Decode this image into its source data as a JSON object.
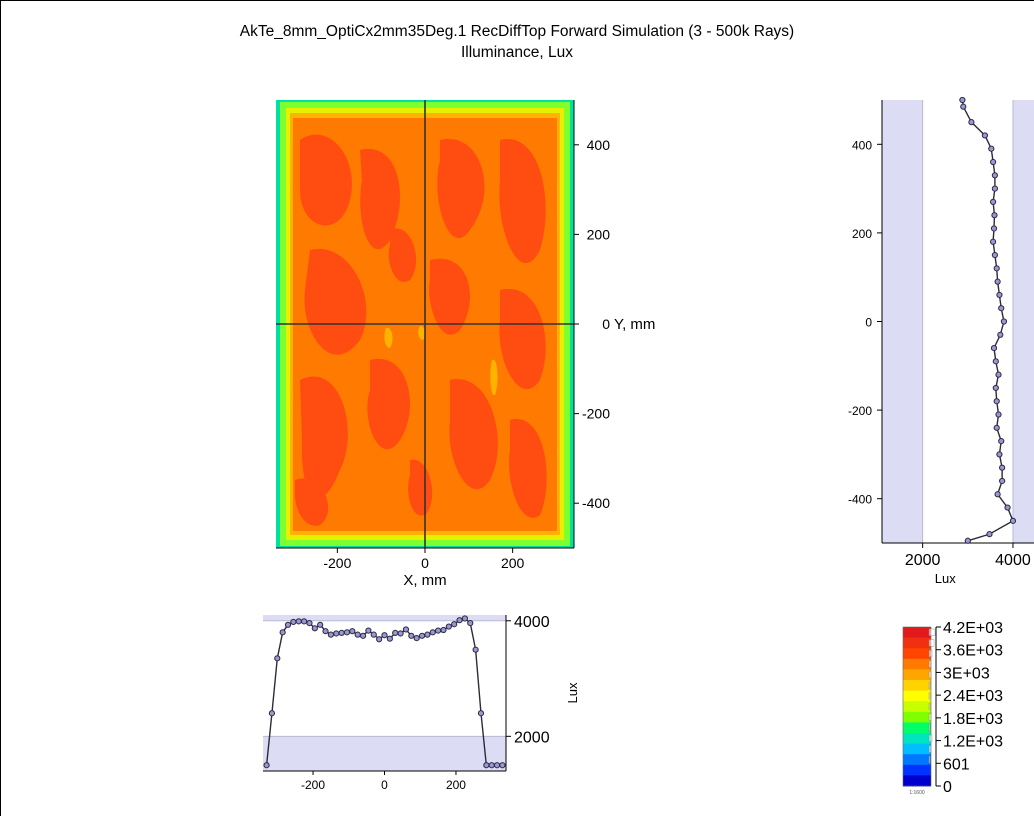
{
  "title": "AkTe_8mm_OptiCx2mm35Deg.1 RecDiffTop Forward Simulation (3 - 500k Rays)",
  "subtitle": "Illuminance, Lux",
  "colors": {
    "profile_line": "#2b2b3a",
    "marker_fill": "#9a97d9",
    "profile_band": "#dcdcf4",
    "crosshair": "#333333"
  },
  "chart_data": [
    {
      "type": "heatmap",
      "name": "main_map",
      "x_label": "X, mm",
      "y_label": "Y, mm",
      "xlim": [
        -340,
        340
      ],
      "ylim": [
        -500,
        500
      ],
      "x_ticks": [
        -200,
        0,
        200
      ],
      "y_ticks": [
        -400,
        -200,
        0,
        200,
        400
      ],
      "x_tick_labels": [
        "-200",
        "0",
        "200"
      ],
      "y_tick_labels": [
        "-400",
        "-200",
        "0",
        "200",
        "400"
      ],
      "crosshair": [
        0,
        0
      ]
    },
    {
      "type": "line",
      "name": "horizontal_profile",
      "y_label": "Lux",
      "xlim": [
        -340,
        340
      ],
      "ylim": [
        1400,
        4100
      ],
      "x_tick_labels": [
        "-200",
        "0",
        "200"
      ],
      "y_tick_labels": [
        "2000",
        "4000"
      ],
      "x_ticks": [
        -200,
        0,
        200
      ],
      "y_ticks": [
        2000,
        4000
      ],
      "x": [
        -330,
        -315,
        -300,
        -285,
        -270,
        -255,
        -240,
        -225,
        -210,
        -195,
        -180,
        -165,
        -150,
        -135,
        -120,
        -105,
        -90,
        -75,
        -60,
        -45,
        -30,
        -15,
        0,
        15,
        30,
        45,
        60,
        75,
        90,
        105,
        120,
        135,
        150,
        165,
        180,
        195,
        210,
        225,
        240,
        255,
        270,
        285,
        300,
        315,
        330
      ],
      "values": [
        1500,
        2400,
        3350,
        3800,
        3930,
        3980,
        3990,
        3990,
        3960,
        3870,
        3930,
        3820,
        3760,
        3780,
        3790,
        3800,
        3820,
        3760,
        3740,
        3830,
        3760,
        3680,
        3750,
        3690,
        3790,
        3780,
        3850,
        3740,
        3700,
        3740,
        3760,
        3800,
        3830,
        3840,
        3900,
        3940,
        4010,
        4040,
        3960,
        3500,
        2400,
        1500,
        1500,
        1500,
        1500
      ]
    },
    {
      "type": "line",
      "name": "vertical_profile",
      "x_label": "Lux",
      "xlim": [
        1100,
        4200
      ],
      "ylim": [
        -500,
        500
      ],
      "x_ticks": [
        2000,
        4000
      ],
      "y_ticks": [
        -400,
        -200,
        0,
        200,
        400
      ],
      "x_tick_labels": [
        "2000",
        "4000"
      ],
      "y_tick_labels": [
        "-400",
        "-200",
        "0",
        "200",
        "400"
      ],
      "y": [
        500,
        485,
        450,
        420,
        390,
        360,
        330,
        300,
        270,
        240,
        210,
        180,
        150,
        120,
        90,
        60,
        30,
        0,
        -30,
        -60,
        -90,
        -120,
        -150,
        -180,
        -210,
        -240,
        -270,
        -300,
        -330,
        -360,
        -390,
        -420,
        -450,
        -480,
        -495
      ],
      "values": [
        2880,
        2900,
        3080,
        3380,
        3520,
        3560,
        3600,
        3600,
        3560,
        3590,
        3580,
        3560,
        3600,
        3640,
        3660,
        3700,
        3740,
        3800,
        3720,
        3580,
        3620,
        3680,
        3620,
        3640,
        3680,
        3640,
        3740,
        3700,
        3760,
        3760,
        3660,
        3880,
        4000,
        3480,
        3000
      ]
    },
    {
      "type": "legend_colorbar",
      "name": "color_scale",
      "tick_labels": [
        "4.2E+03",
        "3.6E+03",
        "3E+03",
        "2.4E+03",
        "1.8E+03",
        "1.2E+03",
        "601",
        "0"
      ],
      "colors_top_to_bottom": [
        "#e31a1c",
        "#f03010",
        "#ff4500",
        "#ff7a00",
        "#ffa500",
        "#ffd200",
        "#ffff00",
        "#c8ff00",
        "#80ff00",
        "#00ff66",
        "#00e5c0",
        "#00bfff",
        "#0077ff",
        "#0033ff",
        "#0000cc"
      ],
      "footnote": "1:1600"
    }
  ]
}
